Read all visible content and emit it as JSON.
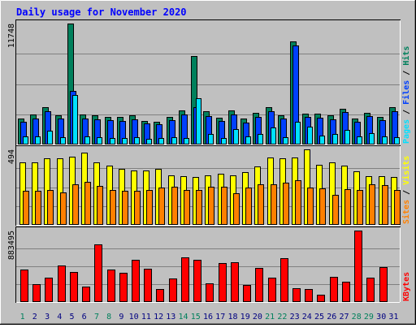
{
  "chart_data": {
    "type": "bar",
    "title": "Daily usage for November 2020",
    "categories": [
      "1",
      "2",
      "3",
      "4",
      "5",
      "6",
      "7",
      "8",
      "9",
      "10",
      "11",
      "12",
      "13",
      "14",
      "15",
      "16",
      "17",
      "18",
      "19",
      "20",
      "21",
      "22",
      "23",
      "24",
      "25",
      "26",
      "27",
      "28",
      "29",
      "30",
      "31"
    ],
    "weekend_days": [
      "1",
      "7",
      "8",
      "14",
      "15",
      "21",
      "22",
      "28",
      "29"
    ],
    "panels": [
      {
        "max_label": "11748",
        "ylim": [
          0,
          11748
        ],
        "legend": [
          "Pages",
          "Files",
          "Hits"
        ],
        "series": [
          {
            "name": "Hits",
            "color": "#00805C",
            "values": [
              2500,
              2900,
              3650,
              2850,
              11748,
              2900,
              2800,
              2700,
              2650,
              2800,
              2300,
              2200,
              2700,
              3300,
              8600,
              3200,
              2600,
              3300,
              2500,
              3050,
              3600,
              2800,
              10000,
              3000,
              3000,
              2800,
              3500,
              2500,
              3100,
              2650,
              3600
            ]
          },
          {
            "name": "Files",
            "color": "#0040FF",
            "values": [
              2200,
              2500,
              3250,
              2500,
              5200,
              2500,
              2450,
              2350,
              2300,
              2450,
              2050,
              1950,
              2350,
              2900,
              3600,
              2750,
              2300,
              2900,
              2150,
              2700,
              3200,
              2500,
              9600,
              2650,
              2600,
              2450,
              3150,
              2200,
              2750,
              2400,
              3250
            ]
          },
          {
            "name": "Pages",
            "color": "#00E0FF",
            "values": [
              800,
              750,
              1350,
              700,
              4800,
              800,
              700,
              650,
              600,
              700,
              550,
              600,
              700,
              650,
              4500,
              1050,
              650,
              1500,
              750,
              1050,
              1650,
              700,
              2200,
              1700,
              900,
              1000,
              1400,
              800,
              1100,
              800,
              700
            ]
          }
        ]
      },
      {
        "max_label": "494",
        "ylim": [
          0,
          494
        ],
        "legend": [
          "Sites",
          "Visits"
        ],
        "series": [
          {
            "name": "Visits",
            "color": "#FFFF00",
            "values": [
              411,
              410,
              434,
              434,
              447,
              475,
              409,
              387,
              367,
              354,
              356,
              367,
              324,
              318,
              315,
              322,
              333,
              323,
              343,
              383,
              442,
              437,
              443,
              494,
              391,
              411,
              387,
              352,
              320,
              317,
              311
            ]
          },
          {
            "name": "Sites",
            "color": "#FF8000",
            "values": [
              225,
              223,
              227,
              212,
              267,
              281,
              257,
              228,
              221,
              225,
              229,
              243,
              247,
              228,
              226,
              247,
              250,
              207,
              244,
              265,
              268,
              277,
              292,
              243,
              239,
              199,
              234,
              231,
              267,
              262,
              227
            ]
          }
        ]
      },
      {
        "max_label": "883495",
        "ylim": [
          0,
          883495
        ],
        "legend": [
          "KBytes"
        ],
        "series": [
          {
            "name": "KBytes",
            "color": "#FF0000",
            "values": [
              402000,
              223000,
              297000,
              452000,
              372000,
              194000,
              714000,
              401000,
              360000,
              527000,
              411000,
              159000,
              293000,
              557000,
              518000,
              227000,
              478000,
              488000,
              215000,
              425000,
              297000,
              543000,
              175000,
              160000,
              88000,
              313000,
              253000,
              883495,
              306000,
              433000,
              null
            ]
          }
        ]
      }
    ],
    "colors": {
      "background": "#C0C0C0",
      "title": "#0000FF",
      "weekday_label": "#000080",
      "weekend_label": "#00805C"
    }
  }
}
